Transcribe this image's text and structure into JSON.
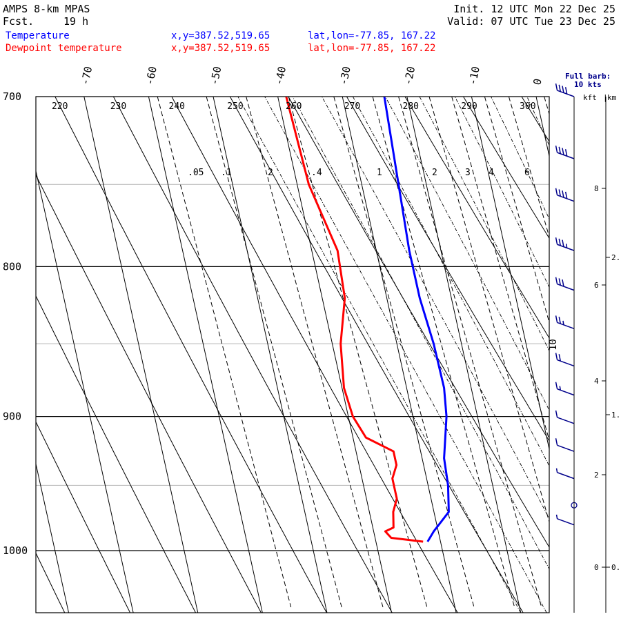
{
  "header": {
    "model": "AMPS 8-km MPAS",
    "fcst_label": "Fcst.",
    "fcst_value": "19 h",
    "init": "Init. 12 UTC Mon 22 Dec 25",
    "valid": "Valid: 07 UTC Tue 23 Dec 25"
  },
  "legend": [
    {
      "name": "Temperature",
      "xy": "x,y=387.52,519.65",
      "latlon": "lat,lon=-77.85, 167.22",
      "color": "#0000ff"
    },
    {
      "name": "Dewpoint temperature",
      "xy": "x,y=387.52,519.65",
      "latlon": "lat,lon=-77.85, 167.22",
      "color": "#ff0000"
    }
  ],
  "barb_note": {
    "line1": "Full barb:",
    "line2": "10 kts"
  },
  "height_axis": {
    "kft_label": "kft",
    "km_label": "km"
  },
  "chart_data": {
    "type": "line",
    "x_axis": "temperature (°C, skewed)",
    "y_axis": "pressure (hPa, log)",
    "p_top": 700,
    "p_bottom": 1045,
    "pressure_ticks": [
      700,
      800,
      900,
      1000
    ],
    "temp_labels": [
      -70,
      -60,
      -50,
      -40,
      -30,
      -20,
      -10,
      0
    ],
    "theta_labels": [
      220,
      230,
      240,
      250,
      260,
      270,
      280,
      290,
      300
    ],
    "mixing_ratio_labels": [
      ".05",
      ".1",
      "2",
      ".4",
      "1",
      "2",
      "3",
      "4",
      "6"
    ],
    "theta_e_label": "10",
    "series": [
      {
        "name": "Temperature",
        "color": "#0000ff",
        "points": [
          [
            700,
            -23.5
          ],
          [
            750,
            -24.3
          ],
          [
            790,
            -24.9
          ],
          [
            820,
            -24.9
          ],
          [
            850,
            -24.3
          ],
          [
            880,
            -24.2
          ],
          [
            900,
            -24.8
          ],
          [
            930,
            -26.6
          ],
          [
            950,
            -26.9
          ],
          [
            970,
            -27.7
          ],
          [
            985,
            -30.7
          ],
          [
            993,
            -32.0
          ]
        ]
      },
      {
        "name": "Dewpoint temperature",
        "color": "#ff0000",
        "points": [
          [
            700,
            -38.7
          ],
          [
            750,
            -38.2
          ],
          [
            790,
            -36.0
          ],
          [
            820,
            -36.5
          ],
          [
            850,
            -38.7
          ],
          [
            880,
            -39.7
          ],
          [
            900,
            -39.3
          ],
          [
            915,
            -38.0
          ],
          [
            925,
            -34.2
          ],
          [
            935,
            -34.2
          ],
          [
            945,
            -35.3
          ],
          [
            960,
            -35.3
          ],
          [
            970,
            -36.3
          ],
          [
            982,
            -36.8
          ],
          [
            985,
            -38.2
          ],
          [
            990,
            -37.5
          ],
          [
            993,
            -32.7
          ]
        ]
      }
    ],
    "wind_barbs_kt": [
      {
        "p": 700,
        "speed": 40
      },
      {
        "p": 735,
        "speed": 40
      },
      {
        "p": 760,
        "speed": 40
      },
      {
        "p": 790,
        "speed": 35
      },
      {
        "p": 815,
        "speed": 30
      },
      {
        "p": 840,
        "speed": 25
      },
      {
        "p": 865,
        "speed": 20
      },
      {
        "p": 885,
        "speed": 15
      },
      {
        "p": 905,
        "speed": 10
      },
      {
        "p": 925,
        "speed": 10
      },
      {
        "p": 945,
        "speed": 5
      },
      {
        "p": 965,
        "speed": 0
      },
      {
        "p": 980,
        "speed": 5
      }
    ],
    "height_kft_ticks": [
      0,
      2,
      4,
      6,
      8
    ],
    "height_km_ticks": [
      "0.",
      "1.",
      "2."
    ]
  }
}
